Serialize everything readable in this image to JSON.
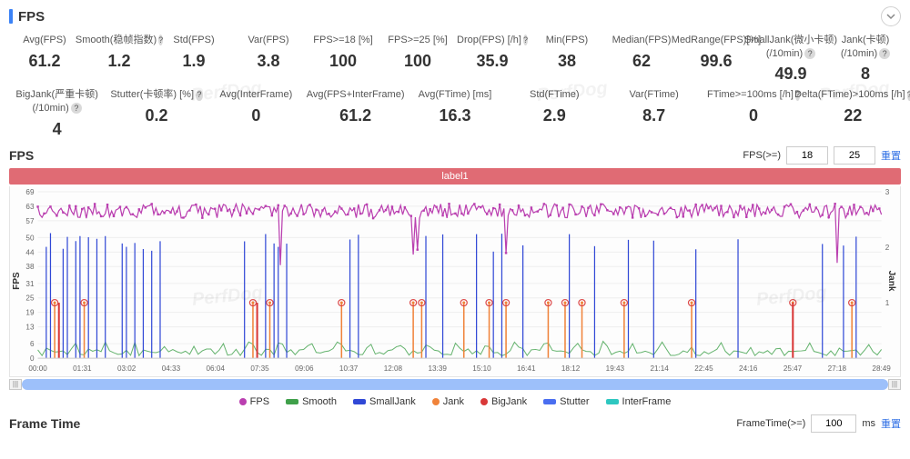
{
  "section_title": "FPS",
  "collapse_icon": "chevron-down",
  "stats_row1": [
    {
      "label": "Avg(FPS)",
      "value": "61.2",
      "help": false
    },
    {
      "label": "Smooth(稳帧指数)",
      "value": "1.2",
      "help": true
    },
    {
      "label": "Std(FPS)",
      "value": "1.9",
      "help": false
    },
    {
      "label": "Var(FPS)",
      "value": "3.8",
      "help": false
    },
    {
      "label": "FPS>=18 [%]",
      "value": "100",
      "help": false
    },
    {
      "label": "FPS>=25 [%]",
      "value": "100",
      "help": false
    },
    {
      "label": "Drop(FPS) [/h]",
      "value": "35.9",
      "help": true
    },
    {
      "label": "Min(FPS)",
      "value": "38",
      "help": false
    },
    {
      "label": "Median(FPS)",
      "value": "62",
      "help": false
    },
    {
      "label": "MedRange(FPS)[%]",
      "value": "99.6",
      "help": false
    },
    {
      "label": "SmallJank(微小卡顿)",
      "sub": "(/10min)",
      "value": "49.9",
      "help": true
    },
    {
      "label": "Jank(卡顿)",
      "sub": "(/10min)",
      "value": "8",
      "help": true
    }
  ],
  "stats_row2": [
    {
      "label": "BigJank(严重卡顿)",
      "sub": "(/10min)",
      "value": "4",
      "help": true
    },
    {
      "label": "Stutter(卡顿率) [%]",
      "value": "0.2",
      "help": true
    },
    {
      "label": "Avg(InterFrame)",
      "value": "0",
      "help": false
    },
    {
      "label": "Avg(FPS+InterFrame)",
      "value": "61.2",
      "help": false
    },
    {
      "label": "Avg(FTime) [ms]",
      "value": "16.3",
      "help": false
    },
    {
      "label": "Std(FTime)",
      "value": "2.9",
      "help": false
    },
    {
      "label": "Var(FTime)",
      "value": "8.7",
      "help": false
    },
    {
      "label": "FTime>=100ms [/h]",
      "value": "0",
      "help": true
    },
    {
      "label": "Delta(FTime)>100ms [/h]",
      "value": "22",
      "help": true
    }
  ],
  "chart": {
    "title": "FPS",
    "threshold_label": "FPS(>=)",
    "threshold1": "18",
    "threshold2": "25",
    "reset_label": "重置",
    "banner": "label1",
    "banner_color": "#e06b74",
    "left_axis": {
      "label": "FPS",
      "ticks": [
        0,
        6,
        13,
        19,
        25,
        31,
        38,
        44,
        50,
        57,
        63,
        69
      ]
    },
    "right_axis": {
      "label": "Jank",
      "ticks": [
        1,
        2,
        3
      ]
    },
    "x_ticks": [
      "00:00",
      "01:31",
      "03:02",
      "04:33",
      "06:04",
      "07:35",
      "09:06",
      "10:37",
      "12:08",
      "13:39",
      "15:10",
      "16:41",
      "18:12",
      "19:43",
      "21:14",
      "22:45",
      "24:16",
      "25:47",
      "27:18",
      "28:49"
    ],
    "series_colors": {
      "FPS": "#ba3fb0",
      "Smooth": "#3fa04a",
      "SmallJank": "#3048d6",
      "Jank": "#f0833a",
      "BigJank": "#d93838",
      "Stutter": "#4a6ef0",
      "InterFrame": "#2ec7c0"
    },
    "fps_band": {
      "base": 61,
      "jitter": 3
    },
    "smalljank_positions": [
      0.01,
      0.015,
      0.03,
      0.035,
      0.045,
      0.05,
      0.06,
      0.07,
      0.08,
      0.1,
      0.105,
      0.115,
      0.125,
      0.135,
      0.145,
      0.245,
      0.27,
      0.28,
      0.285,
      0.295,
      0.37,
      0.38,
      0.46,
      0.48,
      0.52,
      0.54,
      0.55,
      0.575,
      0.63,
      0.66,
      0.7,
      0.73,
      0.78,
      0.83,
      0.93,
      0.955,
      0.97
    ],
    "jank_positions": [
      0.02,
      0.055,
      0.255,
      0.275,
      0.36,
      0.445,
      0.455,
      0.505,
      0.535,
      0.555,
      0.605,
      0.625,
      0.645,
      0.695,
      0.775,
      0.895,
      0.965
    ],
    "bigjank_positions": [
      0.025,
      0.26,
      0.895
    ],
    "threshold_y": 23,
    "legend": [
      {
        "label": "FPS",
        "color": "#ba3fb0",
        "shape": "dot"
      },
      {
        "label": "Smooth",
        "color": "#3fa04a",
        "shape": "line"
      },
      {
        "label": "SmallJank",
        "color": "#3048d6",
        "shape": "line"
      },
      {
        "label": "Jank",
        "color": "#f0833a",
        "shape": "dot"
      },
      {
        "label": "BigJank",
        "color": "#d93838",
        "shape": "dot"
      },
      {
        "label": "Stutter",
        "color": "#4a6ef0",
        "shape": "line"
      },
      {
        "label": "InterFrame",
        "color": "#2ec7c0",
        "shape": "line"
      }
    ],
    "background": "#fdfdfd",
    "grid_color": "#eeeeee"
  },
  "frametime": {
    "title": "Frame Time",
    "label": "FrameTime(>=)",
    "value": "100",
    "unit": "ms",
    "reset": "重置"
  },
  "watermarks": [
    "PerfDog",
    "PerfDog",
    "PerfDog",
    "PerfDog",
    "PerfDog"
  ]
}
